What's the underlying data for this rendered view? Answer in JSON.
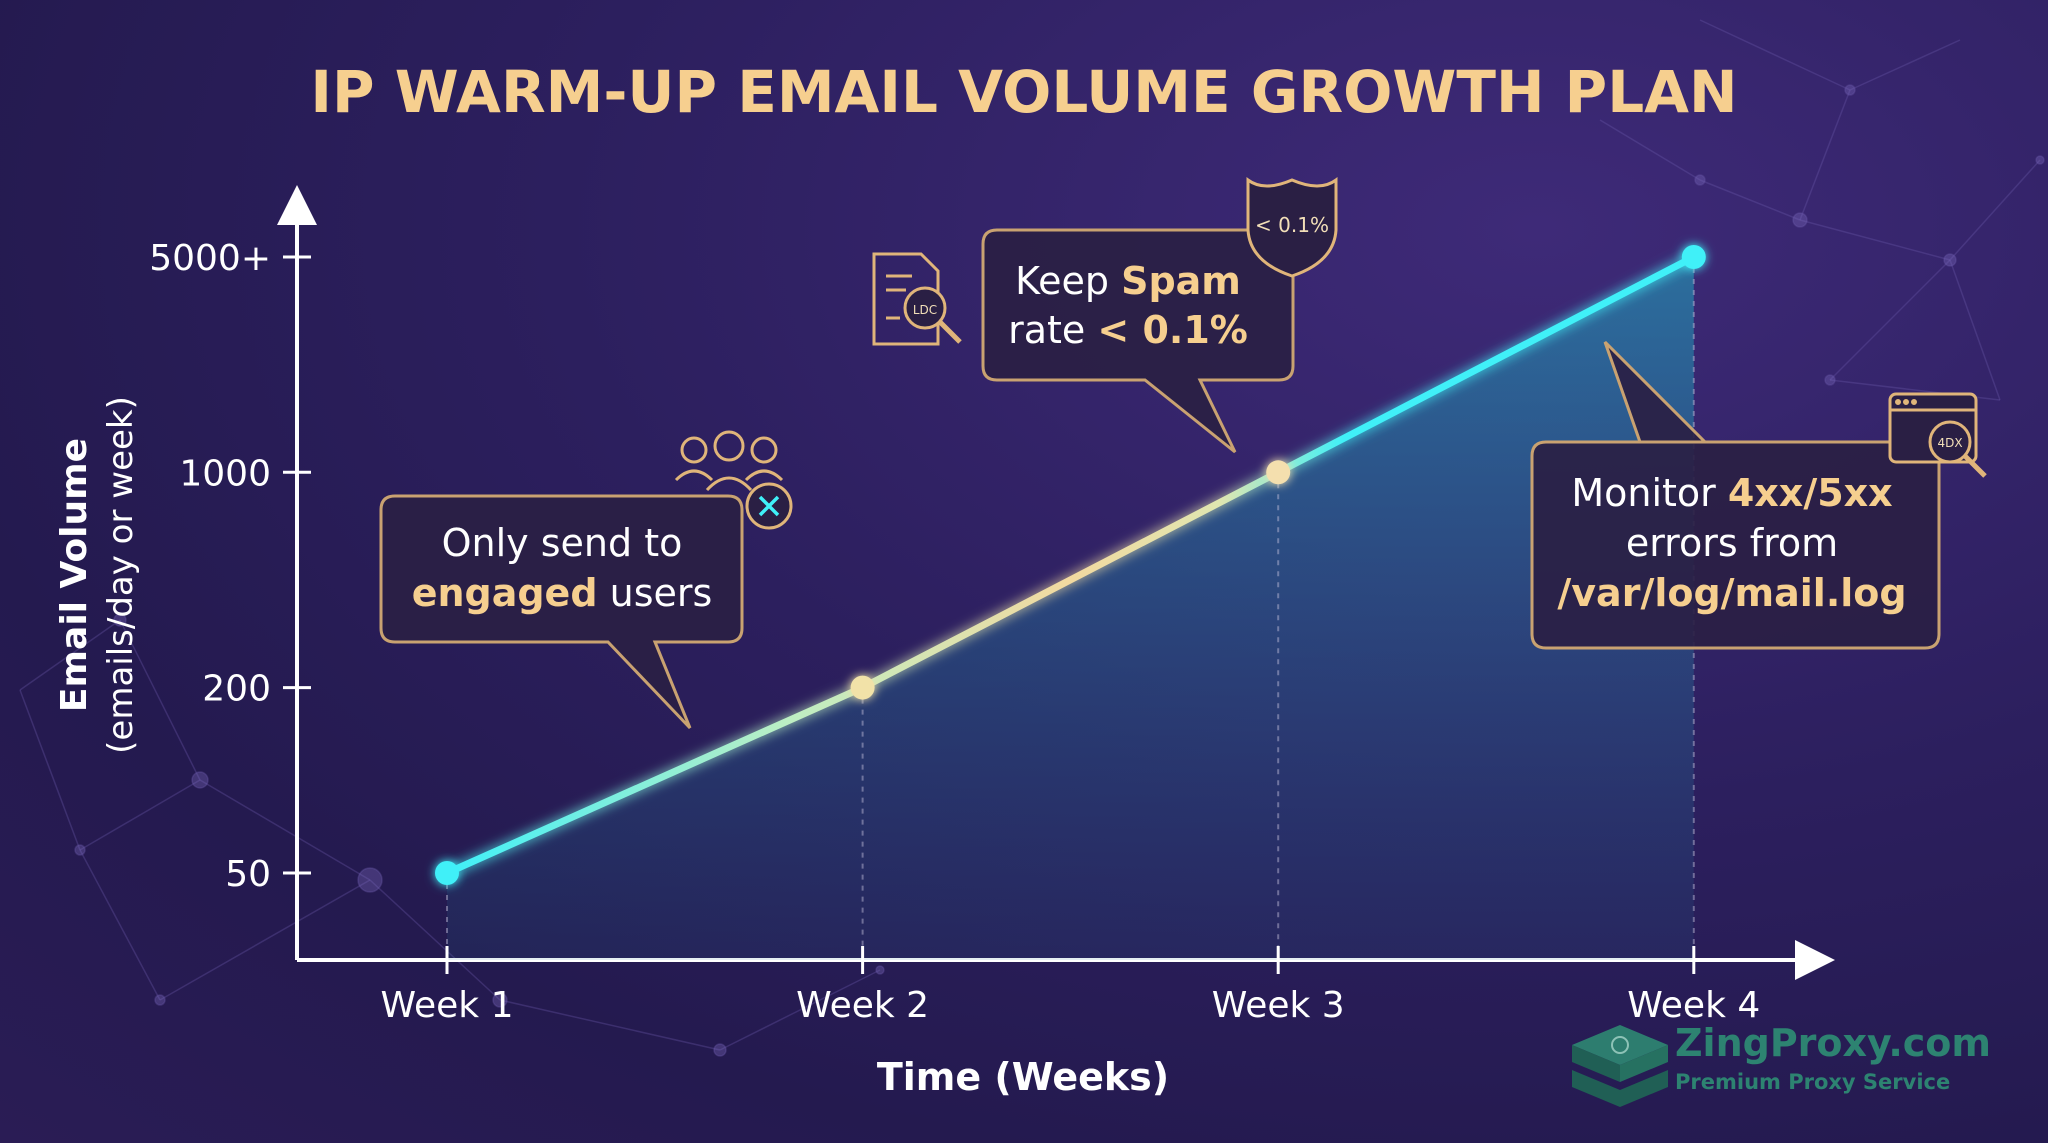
{
  "title": "IP WARM-UP EMAIL VOLUME GROWTH PLAN",
  "chart_data": {
    "type": "line",
    "categories": [
      "Week 1",
      "Week 2",
      "Week 3",
      "Week 4"
    ],
    "values": [
      50,
      200,
      1000,
      5000
    ],
    "y_tick_labels": [
      "5000+",
      "1000",
      "200",
      "50"
    ],
    "y_tick_values": [
      5000,
      1000,
      200,
      50
    ],
    "y_scale": "log",
    "ylabel": "Email Volume",
    "ylabel_sub": "(emails/day or week)",
    "xlabel": "Time (Weeks)",
    "grid": false,
    "colors": {
      "line_cyan": "#3ff0f8",
      "line_gold": "#f2d9a0",
      "callout_border": "#c9a271",
      "highlight": "#f6cf8f"
    }
  },
  "callouts": {
    "engaged": {
      "line1": "Only send to",
      "bold": "engaged",
      "rest": " users",
      "icon": "users-blocked-icon"
    },
    "spam": {
      "prefix": "Keep ",
      "bold": "Spam",
      "line2_prefix": "rate ",
      "line2_bold": "< 0.1%",
      "shield_text": "< 0.1%",
      "doc_icon_text": "LDC"
    },
    "monitor": {
      "prefix": "Monitor ",
      "bold": "4xx/5xx",
      "line2": "errors from",
      "line3": "/var/log/mail.log",
      "icon_text": "4DX"
    }
  },
  "brand": {
    "name": "ZingProxy.com",
    "tagline": "Premium Proxy Service"
  }
}
